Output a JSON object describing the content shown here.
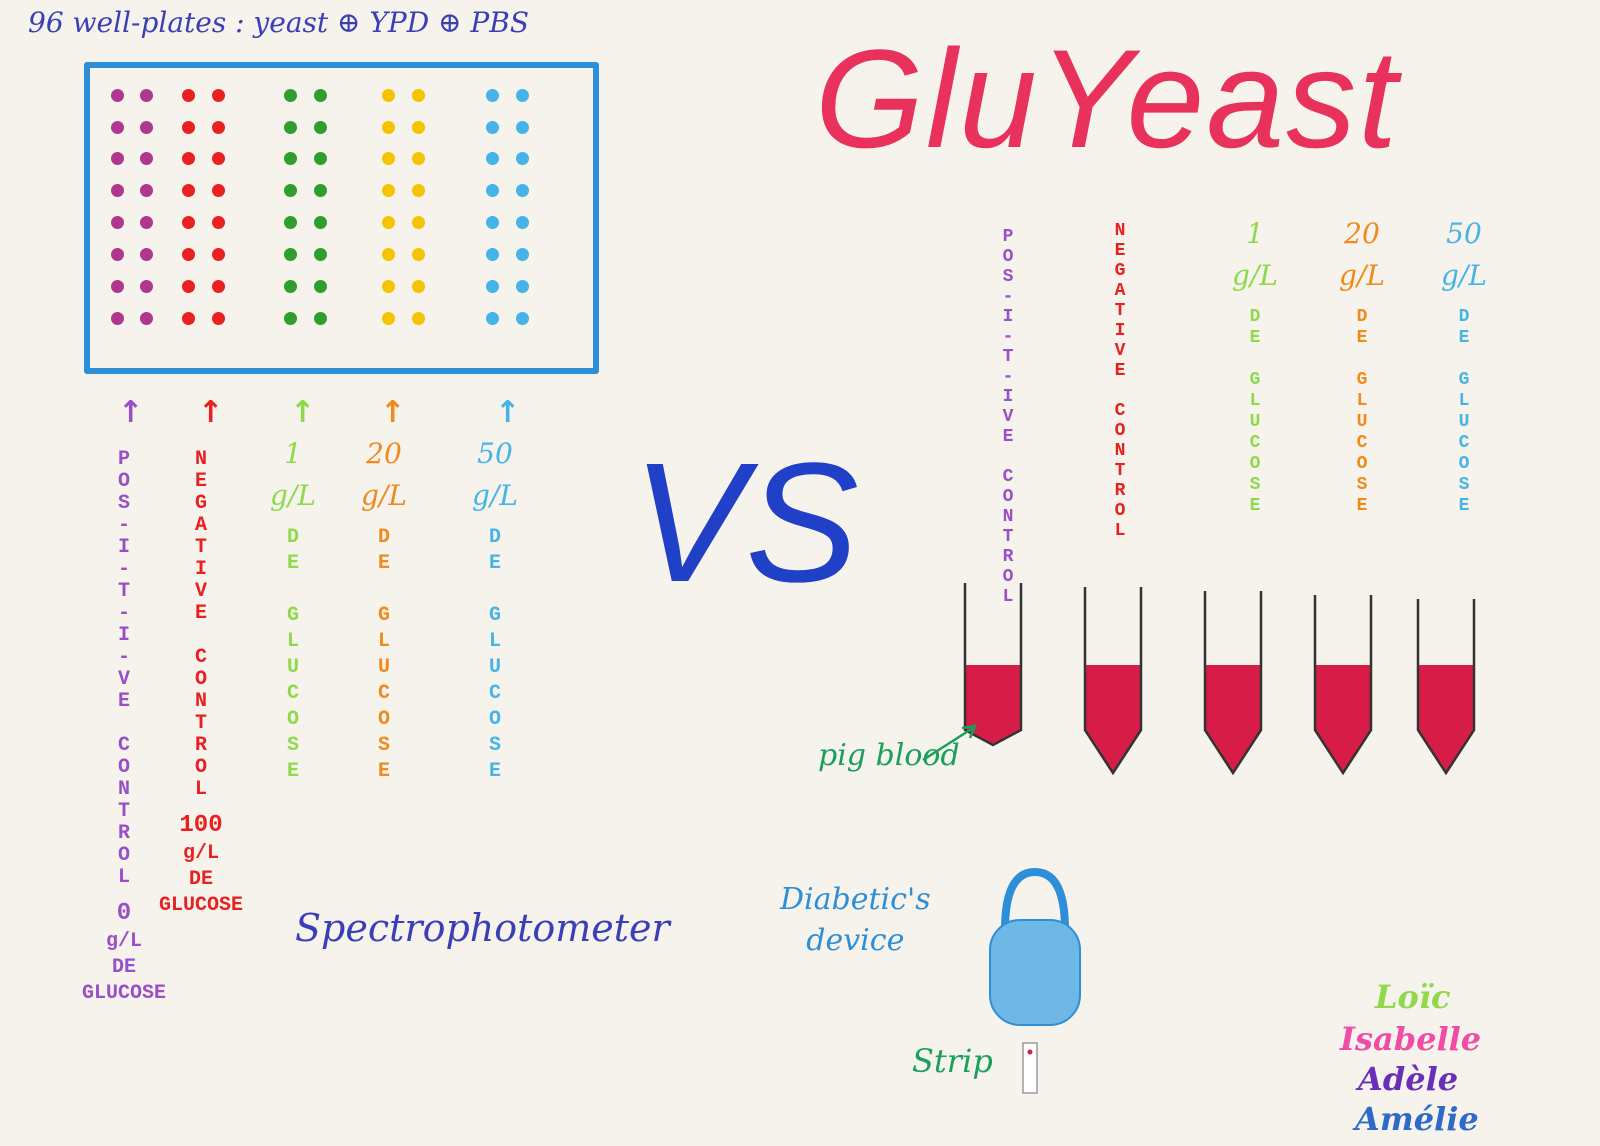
{
  "plate": {
    "title": "96 well-plates : yeast ⊕ YPD ⊕ PBS",
    "columns": [
      {
        "color": "#b0378f"
      },
      {
        "color": "#e82020"
      },
      {
        "color": "#2e9e2e"
      },
      {
        "color": "#f4c400"
      },
      {
        "color": "#46b4e6"
      }
    ]
  },
  "plate_labels": [
    {
      "color": "#9a4fc8",
      "letters": [
        "P",
        "O",
        "S",
        "-",
        "I",
        "-",
        "T",
        "-",
        "I",
        "-",
        "V",
        "E",
        " ",
        "C",
        "O",
        "N",
        "T",
        "R",
        "O",
        "L"
      ],
      "extra": [
        "0",
        "g/L",
        "DE",
        "GLUCOSE"
      ]
    },
    {
      "color": "#e82020",
      "letters": [
        "N",
        "E",
        "G",
        "A",
        "T",
        "I",
        "V",
        "E",
        " ",
        "C",
        "O",
        "N",
        "T",
        "R",
        "O",
        "L"
      ],
      "extra": [
        "100",
        "g/L",
        "DE",
        "GLUCOSE"
      ]
    },
    {
      "color": "#8fd94a",
      "head": [
        "1",
        "g/L"
      ],
      "letters": [
        "D",
        "E",
        " ",
        "G",
        "L",
        "U",
        "C",
        "O",
        "S",
        "E"
      ]
    },
    {
      "color": "#f08a1c",
      "head": [
        "20",
        "g/L"
      ],
      "letters": [
        "D",
        "E",
        " ",
        "G",
        "L",
        "U",
        "C",
        "O",
        "S",
        "E"
      ]
    },
    {
      "color": "#46b4e6",
      "head": [
        "50",
        "g/L"
      ],
      "letters": [
        "D",
        "E",
        " ",
        "G",
        "L",
        "U",
        "C",
        "O",
        "S",
        "E"
      ]
    }
  ],
  "app_title": "GluYeast",
  "vs_label": "VS",
  "spectro_label": "Spectrophotometer",
  "tube_labels": [
    {
      "color": "#9a4fc8",
      "letters": [
        "P",
        "O",
        "S",
        "-",
        "I",
        "-",
        "T",
        "-",
        "I",
        "V",
        "E",
        " ",
        "C",
        "O",
        "N",
        "T",
        "R",
        "O",
        "L"
      ]
    },
    {
      "color": "#e82020",
      "letters": [
        "N",
        "E",
        "G",
        "A",
        "T",
        "I",
        "V",
        "E",
        " ",
        "C",
        "O",
        "N",
        "T",
        "R",
        "O",
        "L"
      ]
    },
    {
      "color": "#8fd94a",
      "head": [
        "1",
        "g/L"
      ],
      "letters": [
        "D",
        "E",
        " ",
        "G",
        "L",
        "U",
        "C",
        "O",
        "S",
        "E"
      ]
    },
    {
      "color": "#f08a1c",
      "head": [
        "20",
        "g/L"
      ],
      "letters": [
        "D",
        "E",
        " ",
        "G",
        "L",
        "U",
        "C",
        "O",
        "S",
        "E"
      ]
    },
    {
      "color": "#46b4e6",
      "head": [
        "50",
        "g/L"
      ],
      "letters": [
        "D",
        "E",
        " ",
        "G",
        "L",
        "U",
        "C",
        "O",
        "S",
        "E"
      ]
    }
  ],
  "blood_color": "#d81c48",
  "pig_label": "pig blood",
  "device_label_line1": "Diabetic's",
  "device_label_line2": "device",
  "strip_label": "Strip",
  "authors": [
    {
      "name": "Loïc",
      "color": "#8fd94a"
    },
    {
      "name": "Isabelle",
      "color": "#f04ca8"
    },
    {
      "name": "Adèle",
      "color": "#6a2fb8"
    },
    {
      "name": "Amélie",
      "color": "#2f6ac8"
    }
  ]
}
